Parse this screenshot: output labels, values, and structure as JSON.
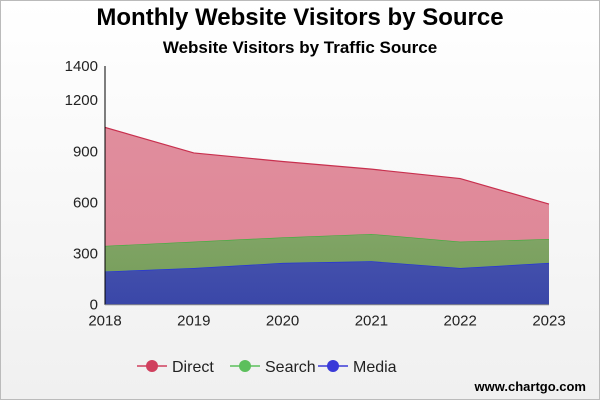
{
  "chart_data": {
    "type": "area",
    "stacked": true,
    "title": "Monthly Website Visitors by Source",
    "subtitle": "Website Visitors by Traffic Source",
    "xlabel": "",
    "ylabel": "",
    "categories": [
      "2018",
      "2019",
      "2020",
      "2021",
      "2022",
      "2023"
    ],
    "y_ticks": [
      0,
      300,
      600,
      900,
      1200,
      1400
    ],
    "ylim": [
      0,
      1400
    ],
    "grid": false,
    "legend_position": "bottom",
    "series": [
      {
        "name": "Media",
        "values": [
          195,
          215,
          245,
          255,
          215,
          245
        ],
        "color": "#3a47a8"
      },
      {
        "name": "Search",
        "values": [
          150,
          155,
          150,
          160,
          155,
          140
        ],
        "color": "#7aa05e"
      },
      {
        "name": "Direct",
        "values": [
          695,
          520,
          445,
          380,
          370,
          205
        ],
        "color": "#df8898"
      }
    ],
    "legend_order": [
      "Direct",
      "Search",
      "Media"
    ],
    "legend_colors": {
      "Direct": "#d0405e",
      "Search": "#5cbf5c",
      "Media": "#3a3ad8"
    },
    "line_colors": {
      "Direct": "#c8304e",
      "Search": "#3cae3c",
      "Media": "#2030e0"
    }
  },
  "watermark": "www.chartgo.com"
}
